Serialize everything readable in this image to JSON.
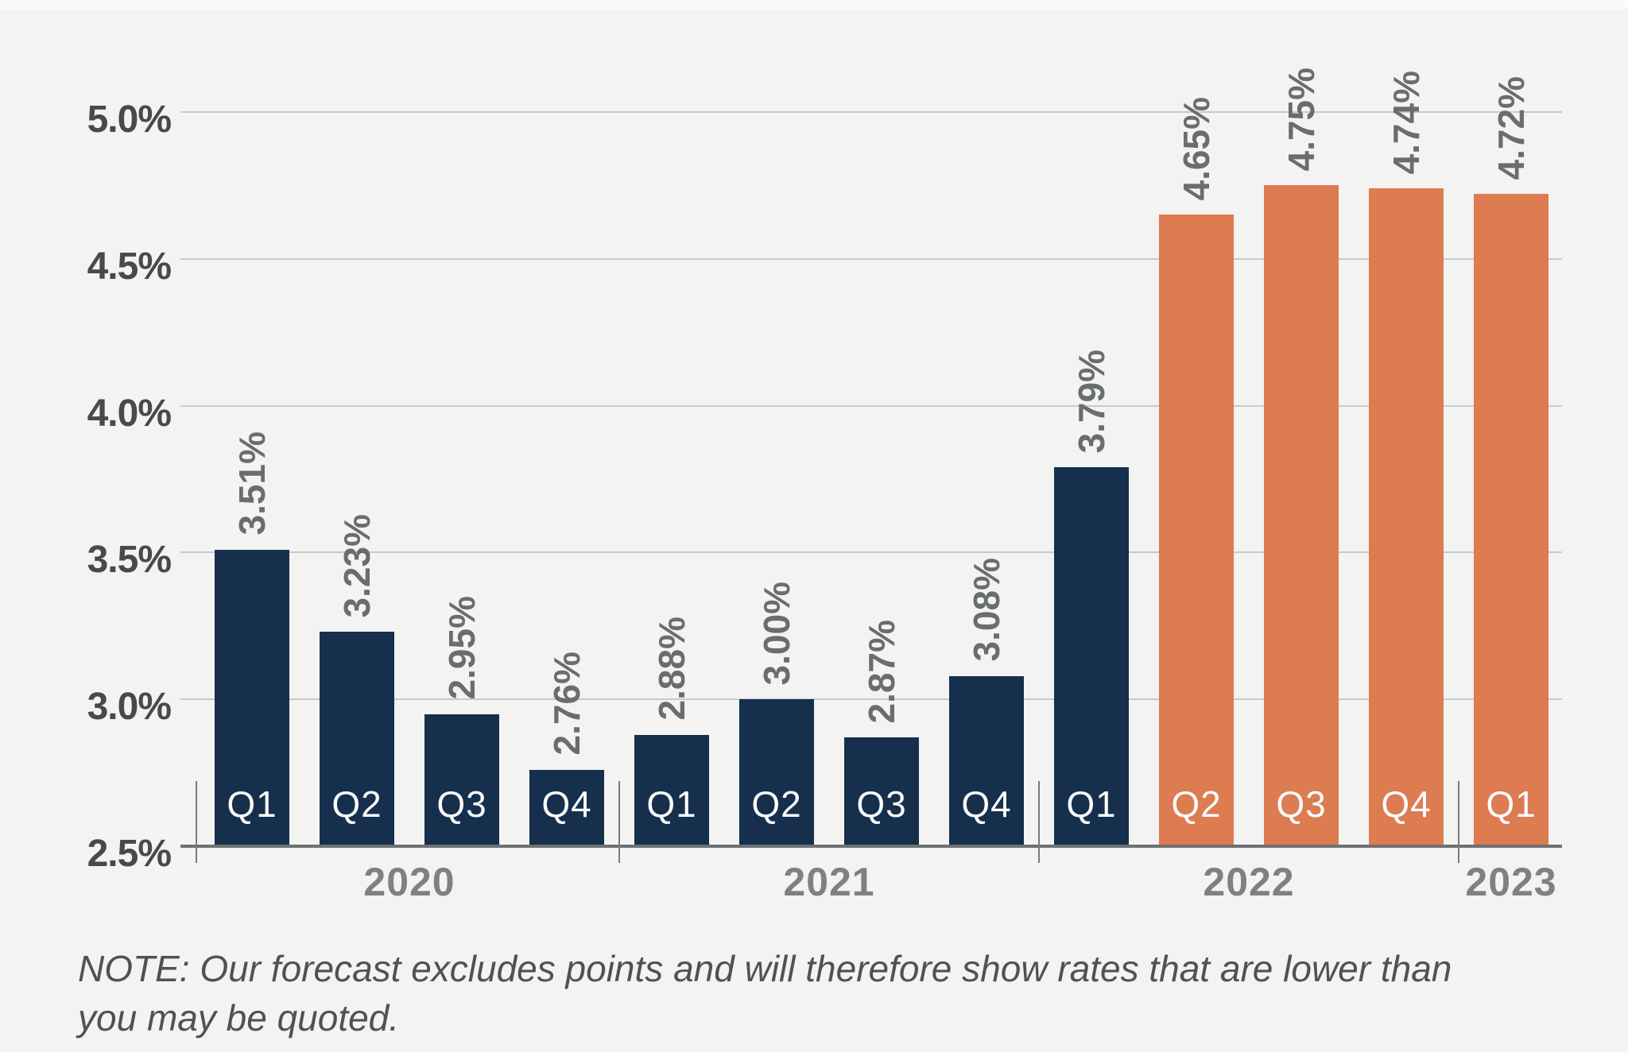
{
  "chart_data": {
    "type": "bar",
    "title": "",
    "unit": "%",
    "ylim": [
      2.5,
      5.0
    ],
    "grid": true,
    "yticks": [
      {
        "label": "5.0%",
        "value": 5.0
      },
      {
        "label": "4.5%",
        "value": 4.5
      },
      {
        "label": "4.0%",
        "value": 4.0
      },
      {
        "label": "3.5%",
        "value": 3.5
      },
      {
        "label": "3.0%",
        "value": 3.0
      },
      {
        "label": "2.5%",
        "value": 2.5
      }
    ],
    "bars": [
      {
        "year": "2020",
        "quarter": "Q1",
        "value": 3.51,
        "label": "3.51%",
        "series": "actual"
      },
      {
        "year": "2020",
        "quarter": "Q2",
        "value": 3.23,
        "label": "3.23%",
        "series": "actual"
      },
      {
        "year": "2020",
        "quarter": "Q3",
        "value": 2.95,
        "label": "2.95%",
        "series": "actual"
      },
      {
        "year": "2020",
        "quarter": "Q4",
        "value": 2.76,
        "label": "2.76%",
        "series": "actual"
      },
      {
        "year": "2021",
        "quarter": "Q1",
        "value": 2.88,
        "label": "2.88%",
        "series": "actual"
      },
      {
        "year": "2021",
        "quarter": "Q2",
        "value": 3.0,
        "label": "3.00%",
        "series": "actual"
      },
      {
        "year": "2021",
        "quarter": "Q3",
        "value": 2.87,
        "label": "2.87%",
        "series": "actual"
      },
      {
        "year": "2021",
        "quarter": "Q4",
        "value": 3.08,
        "label": "3.08%",
        "series": "actual"
      },
      {
        "year": "2022",
        "quarter": "Q1",
        "value": 3.79,
        "label": "3.79%",
        "series": "actual"
      },
      {
        "year": "2022",
        "quarter": "Q2",
        "value": 4.65,
        "label": "4.65%",
        "series": "forecast"
      },
      {
        "year": "2022",
        "quarter": "Q3",
        "value": 4.75,
        "label": "4.75%",
        "series": "forecast"
      },
      {
        "year": "2022",
        "quarter": "Q4",
        "value": 4.74,
        "label": "4.74%",
        "series": "forecast"
      },
      {
        "year": "2023",
        "quarter": "Q1",
        "value": 4.72,
        "label": "4.72%",
        "series": "forecast"
      }
    ],
    "year_groups": [
      {
        "label": "2020",
        "from": 0,
        "to": 3
      },
      {
        "label": "2021",
        "from": 4,
        "to": 7
      },
      {
        "label": "2022",
        "from": 8,
        "to": 11
      },
      {
        "label": "2023",
        "from": 12,
        "to": 12
      }
    ],
    "colors": {
      "actual": "#152f4d",
      "forecast": "#dd7b51",
      "gridline": "#c8c9ca",
      "axis": "#6e7174",
      "ytick_text": "#464a4c",
      "value_text": "#696d70",
      "year_text": "#7e8184",
      "quarter_text": "#fbfcfd"
    },
    "note_lines": [
      "NOTE: Our forecast excludes points and will therefore show rates that are lower than",
      "you may be quoted."
    ]
  }
}
